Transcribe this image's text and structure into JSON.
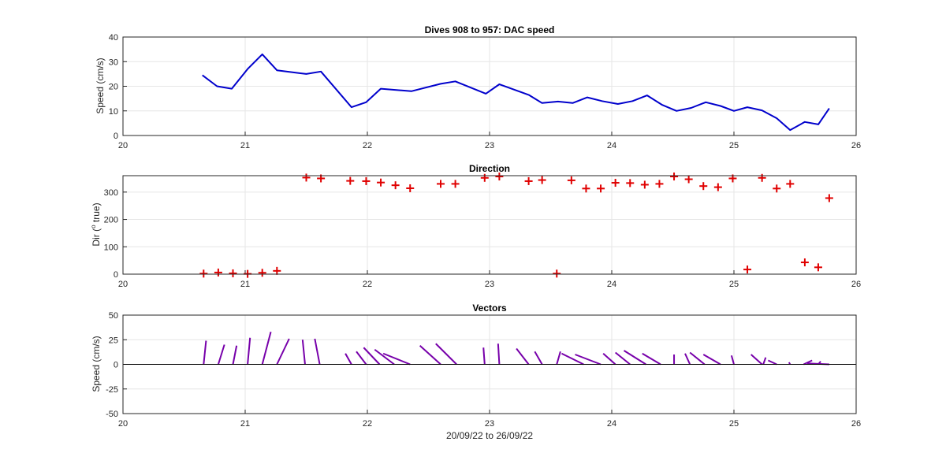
{
  "chart_data": [
    {
      "type": "line",
      "title": "Dives 908 to 957: DAC speed",
      "xlabel": "",
      "ylabel": "Speed (cm/s)",
      "xlim": [
        20,
        26
      ],
      "ylim": [
        0,
        40
      ],
      "xticks": [
        20,
        21,
        22,
        23,
        24,
        25,
        26
      ],
      "yticks": [
        0,
        10,
        20,
        30,
        40
      ],
      "grid": true,
      "color": "#0000CC",
      "series": [
        {
          "x": [
            20.65,
            20.77,
            20.89,
            21.02,
            21.14,
            21.26,
            21.5,
            21.62,
            21.87,
            21.99,
            22.11,
            22.36,
            22.6,
            22.72,
            22.97,
            23.08,
            23.32,
            23.43,
            23.56,
            23.68,
            23.8,
            23.92,
            24.05,
            24.17,
            24.29,
            24.41,
            24.53,
            24.65,
            24.77,
            24.89,
            25.0,
            25.11,
            25.23,
            25.35,
            25.46,
            25.58,
            25.69,
            25.78
          ],
          "y": [
            24.5,
            20,
            19,
            27,
            33,
            26.5,
            25,
            26,
            11.5,
            13.5,
            19,
            18,
            21,
            22,
            17,
            20.8,
            16.5,
            13.2,
            13.8,
            13.2,
            15.5,
            14,
            12.8,
            14,
            16.3,
            12.5,
            10,
            11.2,
            13.5,
            12,
            10,
            11.5,
            10.2,
            7,
            2.2,
            5.5,
            4.5,
            11
          ]
        }
      ]
    },
    {
      "type": "scatter",
      "title": "Direction",
      "xlabel": "",
      "ylabel": "Dir (",
      "ylabel_sup": "o",
      "ylabel_end": " true)",
      "xlim": [
        20,
        26
      ],
      "ylim": [
        0,
        360
      ],
      "xticks": [
        20,
        21,
        22,
        23,
        24,
        25,
        26
      ],
      "yticks": [
        0,
        100,
        200,
        300
      ],
      "grid": true,
      "marker": "+",
      "color": "#E00000",
      "series": [
        {
          "x": [
            20.66,
            20.78,
            20.9,
            21.02,
            21.14,
            21.26,
            21.5,
            21.62,
            21.86,
            21.99,
            22.11,
            22.23,
            22.35,
            22.6,
            22.72,
            22.96,
            23.08,
            23.32,
            23.43,
            23.55,
            23.67,
            23.79,
            23.91,
            24.03,
            24.15,
            24.27,
            24.39,
            24.51,
            24.63,
            24.75,
            24.87,
            24.99,
            25.11,
            25.23,
            25.35,
            25.46,
            25.58,
            25.69,
            25.78
          ],
          "y": [
            2,
            6,
            3,
            1,
            5,
            12,
            353,
            350,
            341,
            340,
            335,
            325,
            314,
            330,
            330,
            352,
            357,
            340,
            344,
            2,
            343,
            313,
            313,
            334,
            333,
            327,
            330,
            357,
            347,
            322,
            318,
            350,
            17,
            352,
            313,
            330,
            43,
            25,
            278
          ]
        }
      ]
    },
    {
      "type": "vector",
      "title": "Vectors",
      "xlabel": "20/09/22 to 26/09/22",
      "ylabel": "Speed (cm/s)",
      "xlim": [
        20,
        26
      ],
      "ylim": [
        -50,
        50
      ],
      "xticks": [
        20,
        21,
        22,
        23,
        24,
        25,
        26
      ],
      "yticks": [
        -50,
        -25,
        0,
        25,
        50
      ],
      "grid": true,
      "color": "#7700AA",
      "baseline_color": "#000000",
      "units_note": "vector base at (time, 0); tip offset dx in days, dy in cm/s",
      "vectors": [
        {
          "x": 20.66,
          "dx": 0.02,
          "dy": 24
        },
        {
          "x": 20.78,
          "dx": 0.05,
          "dy": 20
        },
        {
          "x": 20.9,
          "dx": 0.03,
          "dy": 19
        },
        {
          "x": 21.02,
          "dx": 0.02,
          "dy": 27
        },
        {
          "x": 21.14,
          "dx": 0.07,
          "dy": 33
        },
        {
          "x": 21.26,
          "dx": 0.1,
          "dy": 26
        },
        {
          "x": 21.49,
          "dx": -0.02,
          "dy": 25
        },
        {
          "x": 21.61,
          "dx": -0.04,
          "dy": 26
        },
        {
          "x": 21.87,
          "dx": -0.05,
          "dy": 11
        },
        {
          "x": 21.99,
          "dx": -0.08,
          "dy": 13
        },
        {
          "x": 22.1,
          "dx": -0.13,
          "dy": 17
        },
        {
          "x": 22.22,
          "dx": -0.16,
          "dy": 15
        },
        {
          "x": 22.35,
          "dx": -0.22,
          "dy": 11
        },
        {
          "x": 22.6,
          "dx": -0.17,
          "dy": 19
        },
        {
          "x": 22.73,
          "dx": -0.17,
          "dy": 21
        },
        {
          "x": 22.96,
          "dx": -0.01,
          "dy": 17
        },
        {
          "x": 23.08,
          "dx": -0.01,
          "dy": 21
        },
        {
          "x": 23.32,
          "dx": -0.1,
          "dy": 16
        },
        {
          "x": 23.43,
          "dx": -0.06,
          "dy": 13
        },
        {
          "x": 23.55,
          "dx": 0.03,
          "dy": 13
        },
        {
          "x": 23.77,
          "dx": -0.18,
          "dy": 11
        },
        {
          "x": 23.91,
          "dx": -0.21,
          "dy": 10
        },
        {
          "x": 24.03,
          "dx": -0.1,
          "dy": 11
        },
        {
          "x": 24.15,
          "dx": -0.12,
          "dy": 12
        },
        {
          "x": 24.28,
          "dx": -0.18,
          "dy": 14
        },
        {
          "x": 24.4,
          "dx": -0.15,
          "dy": 11
        },
        {
          "x": 24.51,
          "dx": 0.0,
          "dy": 10
        },
        {
          "x": 24.64,
          "dx": -0.04,
          "dy": 11
        },
        {
          "x": 24.76,
          "dx": -0.12,
          "dy": 12
        },
        {
          "x": 24.89,
          "dx": -0.14,
          "dy": 10
        },
        {
          "x": 25.0,
          "dx": -0.02,
          "dy": 9
        },
        {
          "x": 25.23,
          "dx": -0.09,
          "dy": 10
        },
        {
          "x": 25.24,
          "dx": 0.02,
          "dy": 7
        },
        {
          "x": 25.35,
          "dx": -0.07,
          "dy": 4
        },
        {
          "x": 25.46,
          "dx": -0.01,
          "dy": 2
        },
        {
          "x": 25.57,
          "dx": 0.07,
          "dy": 4
        },
        {
          "x": 25.69,
          "dx": 0.02,
          "dy": 3
        },
        {
          "x": 25.78,
          "dx": -0.18,
          "dy": 1
        }
      ]
    }
  ]
}
